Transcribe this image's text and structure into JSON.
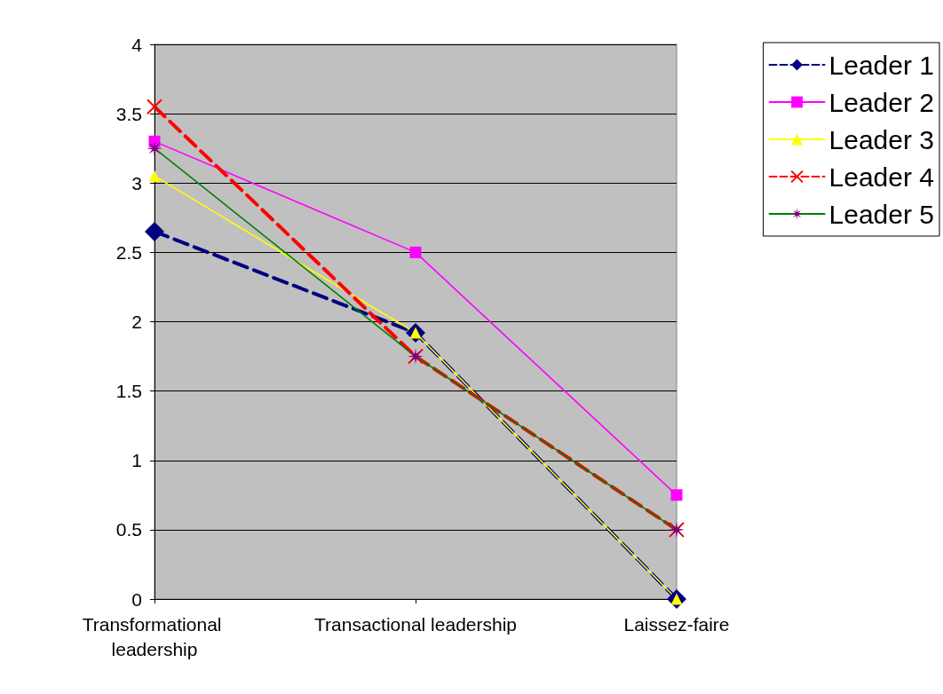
{
  "chart_data": {
    "type": "line",
    "categories": [
      "Transformational leadership",
      "Transactional leadership",
      "Laissez-faire"
    ],
    "series": [
      {
        "name": "Leader 1",
        "color": "#000080",
        "values": [
          2.65,
          1.92,
          0
        ],
        "marker": "diamond",
        "line_style": "dashed"
      },
      {
        "name": "Leader 2",
        "color": "#ff00ff",
        "values": [
          3.3,
          2.5,
          0.75
        ],
        "marker": "square",
        "line_style": "solid"
      },
      {
        "name": "Leader 3",
        "color": "#ffff00",
        "values": [
          3.05,
          1.92,
          0
        ],
        "marker": "triangle",
        "line_style": "solid"
      },
      {
        "name": "Leader 4",
        "color": "#ff0000",
        "values": [
          3.55,
          1.75,
          0.5
        ],
        "marker": "cross",
        "line_style": "dashed"
      },
      {
        "name": "Leader 5",
        "color": "#008000",
        "values": [
          3.25,
          1.75,
          0.5
        ],
        "marker": "star",
        "line_style": "solid"
      }
    ],
    "ylim": [
      0,
      4
    ],
    "yticks": [
      0,
      0.5,
      1,
      1.5,
      2,
      2.5,
      3,
      3.5,
      4
    ],
    "grid": "y",
    "legend": "top right"
  }
}
